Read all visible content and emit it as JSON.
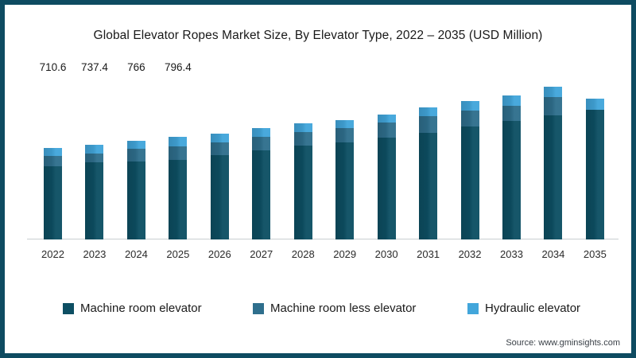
{
  "page": {
    "title": "Global Elevator Ropes Market Size, By Elevator Type, 2022 – 2035 (USD Million)",
    "source": "Source: www.gminsights.com",
    "border_color": "#0e4b61",
    "background": "#ffffff"
  },
  "legend": [
    {
      "label": "Machine room elevator",
      "color": "#0d4f63"
    },
    {
      "label": "Machine room less elevator",
      "color": "#2f6f8d"
    },
    {
      "label": "Hydraulic elevator",
      "color": "#42a6db"
    }
  ],
  "chart_data": {
    "type": "bar",
    "stacked": true,
    "title": "Global Elevator Ropes Market Size, By Elevator Type, 2022 – 2035 (USD Million)",
    "unit": "USD Million",
    "categories": [
      "2022",
      "2023",
      "2024",
      "2025",
      "2026",
      "2027",
      "2028",
      "2029",
      "2030",
      "2031",
      "2032",
      "2033",
      "2034",
      "2035"
    ],
    "series": [
      {
        "name": "Machine room elevator",
        "color": "#0d4f63",
        "values": [
          568.6,
          597.4,
          607,
          620.4,
          655,
          694,
          731,
          756,
          793,
          828,
          876,
          921,
          966,
          1005
        ]
      },
      {
        "name": "Machine room less elevator",
        "color": "#2f6f8d",
        "values": [
          80,
          72,
          97,
          103,
          99,
          103,
          103,
          109,
          114,
          130,
          127,
          117,
          138,
          0
        ]
      },
      {
        "name": "Hydraulic elevator",
        "color": "#42a6db",
        "values": [
          62,
          68,
          62,
          73,
          68,
          68,
          66,
          62,
          62,
          68,
          72,
          80,
          84,
          88
        ]
      }
    ],
    "totals": [
      710.6,
      737.4,
      766,
      796.4,
      822,
      865,
      900,
      927,
      969,
      1026,
      1075,
      1118,
      1188,
      1093
    ],
    "data_labels": [
      "710.6",
      "737.4",
      "766",
      "796.4",
      "",
      "",
      "",
      "",
      "",
      "",
      "",
      "",
      "",
      ""
    ],
    "xlabel": "",
    "ylabel": "",
    "ylim": [
      0,
      1250
    ],
    "grid": false,
    "axis_line_color": "#c9ced1",
    "legend_position": "bottom"
  }
}
